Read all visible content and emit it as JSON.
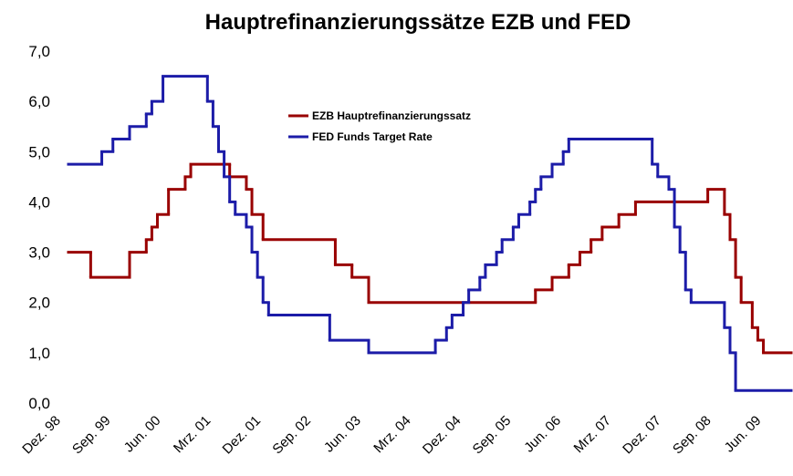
{
  "chart_data": {
    "type": "step",
    "title": "Hauptrefinanzierungssätze EZB und FED",
    "xlim": [
      0,
      130
    ],
    "xticks": [
      {
        "value": 0,
        "label": "Dez. 98"
      },
      {
        "value": 9,
        "label": "Sep. 99"
      },
      {
        "value": 18,
        "label": "Jun. 00"
      },
      {
        "value": 27,
        "label": "Mrz. 01"
      },
      {
        "value": 36,
        "label": "Dez. 01"
      },
      {
        "value": 45,
        "label": "Sep. 02"
      },
      {
        "value": 54,
        "label": "Jun. 03"
      },
      {
        "value": 63,
        "label": "Mrz. 04"
      },
      {
        "value": 72,
        "label": "Dez. 04"
      },
      {
        "value": 81,
        "label": "Sep. 05"
      },
      {
        "value": 90,
        "label": "Jun. 06"
      },
      {
        "value": 99,
        "label": "Mrz. 07"
      },
      {
        "value": 108,
        "label": "Dez. 07"
      },
      {
        "value": 117,
        "label": "Sep. 08"
      },
      {
        "value": 126,
        "label": "Jun. 09"
      }
    ],
    "ylim": [
      0,
      7
    ],
    "yticks": [
      {
        "value": 0,
        "label": "0,0"
      },
      {
        "value": 1,
        "label": "1,0"
      },
      {
        "value": 2,
        "label": "2,0"
      },
      {
        "value": 3,
        "label": "3,0"
      },
      {
        "value": 4,
        "label": "4,0"
      },
      {
        "value": 5,
        "label": "5,0"
      },
      {
        "value": 6,
        "label": "6,0"
      },
      {
        "value": 7,
        "label": "7,0"
      }
    ],
    "grid": false,
    "series": [
      {
        "name": "EZB Hauptrefinanzierungssatz",
        "color": "#990000",
        "x": [
          0,
          4,
          11,
          14,
          15,
          16,
          18,
          21,
          22,
          29,
          32,
          33,
          35,
          48,
          51,
          54,
          84,
          87,
          90,
          92,
          94,
          96,
          99,
          102,
          115,
          118,
          119,
          120,
          121,
          123,
          124,
          125
        ],
        "values": [
          3.0,
          2.5,
          3.0,
          3.25,
          3.5,
          3.75,
          4.25,
          4.5,
          4.75,
          4.5,
          4.25,
          3.75,
          3.25,
          2.75,
          2.5,
          2.0,
          2.25,
          2.5,
          2.75,
          3.0,
          3.25,
          3.5,
          3.75,
          4.0,
          4.25,
          3.75,
          3.25,
          2.5,
          2.0,
          1.5,
          1.25,
          1.0
        ]
      },
      {
        "name": "FED Funds Target Rate",
        "color": "#1c1ca8",
        "x": [
          0,
          6,
          8,
          11,
          14,
          15,
          17,
          25,
          26,
          27,
          28,
          29,
          30,
          32,
          33,
          34,
          35,
          36,
          47,
          54,
          66,
          68,
          69,
          71,
          72,
          74,
          75,
          77,
          78,
          80,
          81,
          83,
          84,
          85,
          87,
          89,
          90,
          105,
          106,
          108,
          109,
          110,
          111,
          112,
          118,
          119,
          120
        ],
        "values": [
          4.75,
          5.0,
          5.25,
          5.5,
          5.75,
          6.0,
          6.5,
          6.0,
          5.5,
          5.0,
          4.5,
          4.0,
          3.75,
          3.5,
          3.0,
          2.5,
          2.0,
          1.75,
          1.25,
          1.0,
          1.25,
          1.5,
          1.75,
          2.0,
          2.25,
          2.5,
          2.75,
          3.0,
          3.25,
          3.5,
          3.75,
          4.0,
          4.25,
          4.5,
          4.75,
          5.0,
          5.25,
          4.75,
          4.5,
          4.25,
          3.5,
          3.0,
          2.25,
          2.0,
          1.5,
          1.0,
          0.25
        ]
      }
    ]
  }
}
